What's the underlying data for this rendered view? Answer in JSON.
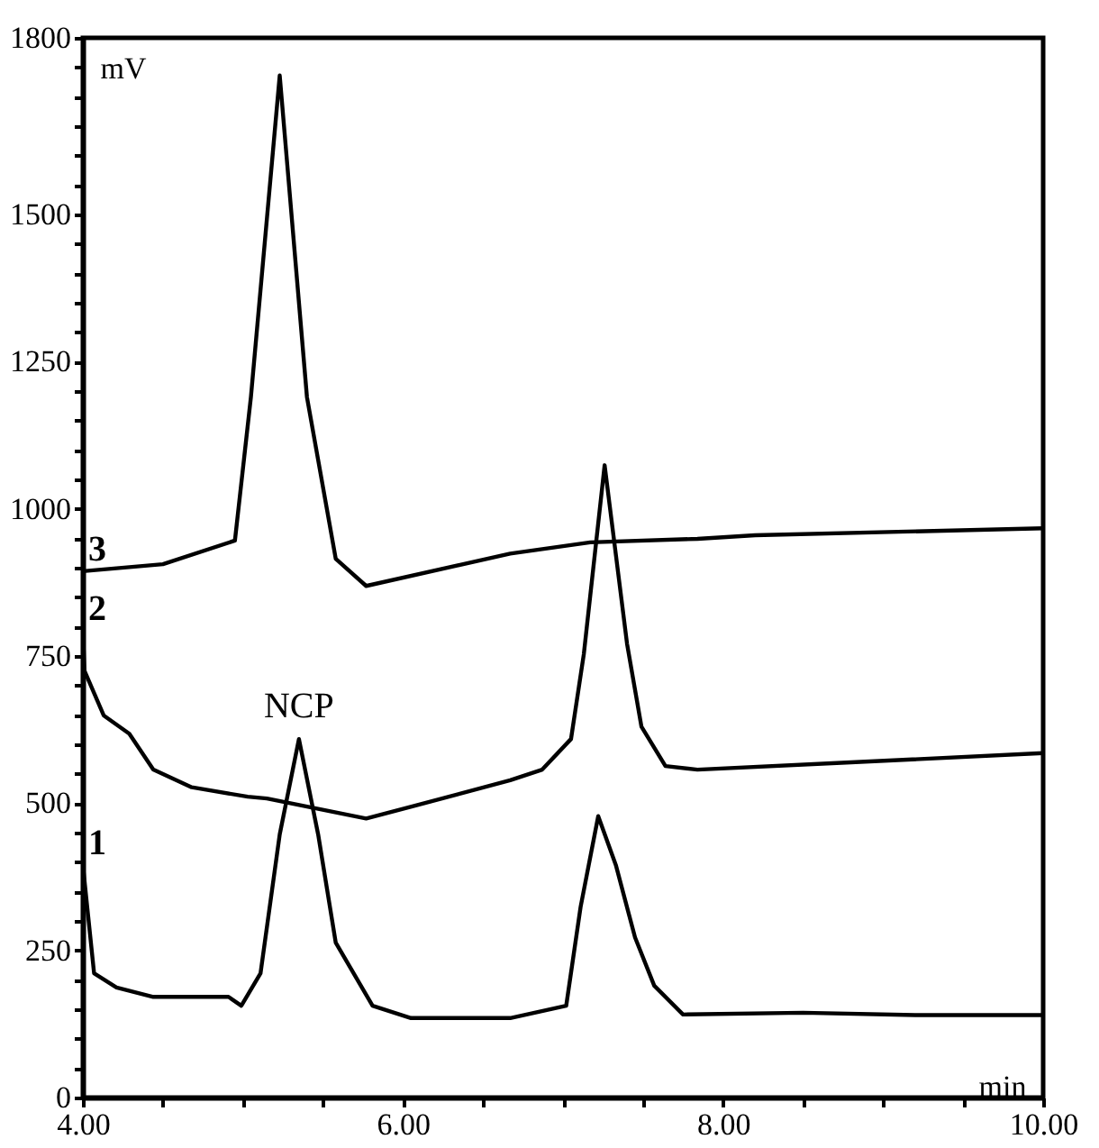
{
  "chart_data": {
    "type": "line",
    "xlabel": "min",
    "ylabel": "mV",
    "xlim": [
      4,
      10
    ],
    "ylim": [
      0,
      1800
    ],
    "xticks": [
      {
        "value": 4,
        "label": "4.00"
      },
      {
        "value": 4.5,
        "label": null
      },
      {
        "value": 5,
        "label": null
      },
      {
        "value": 5.5,
        "label": null
      },
      {
        "value": 6,
        "label": "6.00"
      },
      {
        "value": 6.5,
        "label": null
      },
      {
        "value": 7,
        "label": null
      },
      {
        "value": 7.5,
        "label": null
      },
      {
        "value": 8,
        "label": "8.00"
      },
      {
        "value": 8.5,
        "label": null
      },
      {
        "value": 9,
        "label": null
      },
      {
        "value": 9.5,
        "label": null
      },
      {
        "value": 10,
        "label": "10.00"
      }
    ],
    "yticks": [
      0,
      {
        "value": 50,
        "label": null
      },
      {
        "value": 100,
        "label": null
      },
      {
        "value": 150,
        "label": null
      },
      {
        "value": 200,
        "label": null
      },
      250,
      {
        "value": 300,
        "label": null
      },
      {
        "value": 350,
        "label": null
      },
      {
        "value": 400,
        "label": null
      },
      {
        "value": 450,
        "label": null
      },
      500,
      {
        "value": 550,
        "label": null
      },
      {
        "value": 600,
        "label": null
      },
      {
        "value": 650,
        "label": null
      },
      {
        "value": 700,
        "label": null
      },
      750,
      {
        "value": 800,
        "label": null
      },
      {
        "value": 850,
        "label": null
      },
      {
        "value": 900,
        "label": null
      },
      {
        "value": 950,
        "label": null
      },
      1000,
      {
        "value": 1050,
        "label": null
      },
      {
        "value": 1100,
        "label": null
      },
      {
        "value": 1150,
        "label": null
      },
      {
        "value": 1200,
        "label": null
      },
      1250,
      {
        "value": 1300,
        "label": null
      },
      {
        "value": 1350,
        "label": null
      },
      {
        "value": 1400,
        "label": null
      },
      {
        "value": 1450,
        "label": null
      },
      1500,
      {
        "value": 1550,
        "label": null
      },
      {
        "value": 1600,
        "label": null
      },
      {
        "value": 1650,
        "label": null
      },
      {
        "value": 1700,
        "label": null
      },
      {
        "value": 1750,
        "label": null
      },
      1800
    ],
    "grid": false,
    "legend": false,
    "marker": "none",
    "line_style": "solid",
    "annotations": [
      {
        "text": "NCP",
        "x": 5.35,
        "y": 609
      }
    ],
    "series": [
      {
        "name": "1",
        "color": "#000000",
        "x": [
          4.0,
          4.07,
          4.21,
          4.44,
          4.91,
          4.99,
          5.11,
          5.23,
          5.35,
          5.47,
          5.58,
          5.81,
          6.05,
          6.67,
          7.02,
          7.11,
          7.22,
          7.33,
          7.45,
          7.57,
          7.75,
          8.5,
          9.2,
          10.0
        ],
        "values": [
          395,
          211,
          187,
          171,
          171,
          156,
          211,
          447,
          609,
          447,
          263,
          156,
          135,
          135,
          156,
          324,
          478,
          395,
          272,
          190,
          141,
          144,
          140,
          140
        ]
      },
      {
        "name": "2",
        "color": "#000000",
        "x": [
          4.0,
          4.01,
          4.13,
          4.29,
          4.44,
          4.68,
          5.03,
          5.15,
          5.77,
          6.08,
          6.67,
          6.87,
          7.05,
          7.13,
          7.26,
          7.4,
          7.49,
          7.64,
          7.84,
          8.77,
          10.0
        ],
        "values": [
          793,
          725,
          649,
          618,
          557,
          527,
          511,
          508,
          474,
          496,
          539,
          557,
          609,
          753,
          1074,
          771,
          630,
          563,
          557,
          569,
          585
        ]
      },
      {
        "name": "3",
        "color": "#000000",
        "x": [
          4.0,
          4.5,
          4.95,
          5.05,
          5.23,
          5.4,
          5.58,
          5.77,
          6.67,
          7.17,
          7.84,
          8.2,
          10.0
        ],
        "values": [
          894,
          906,
          946,
          1190,
          1736,
          1190,
          915,
          869,
          924,
          943,
          949,
          955,
          967
        ]
      }
    ]
  }
}
